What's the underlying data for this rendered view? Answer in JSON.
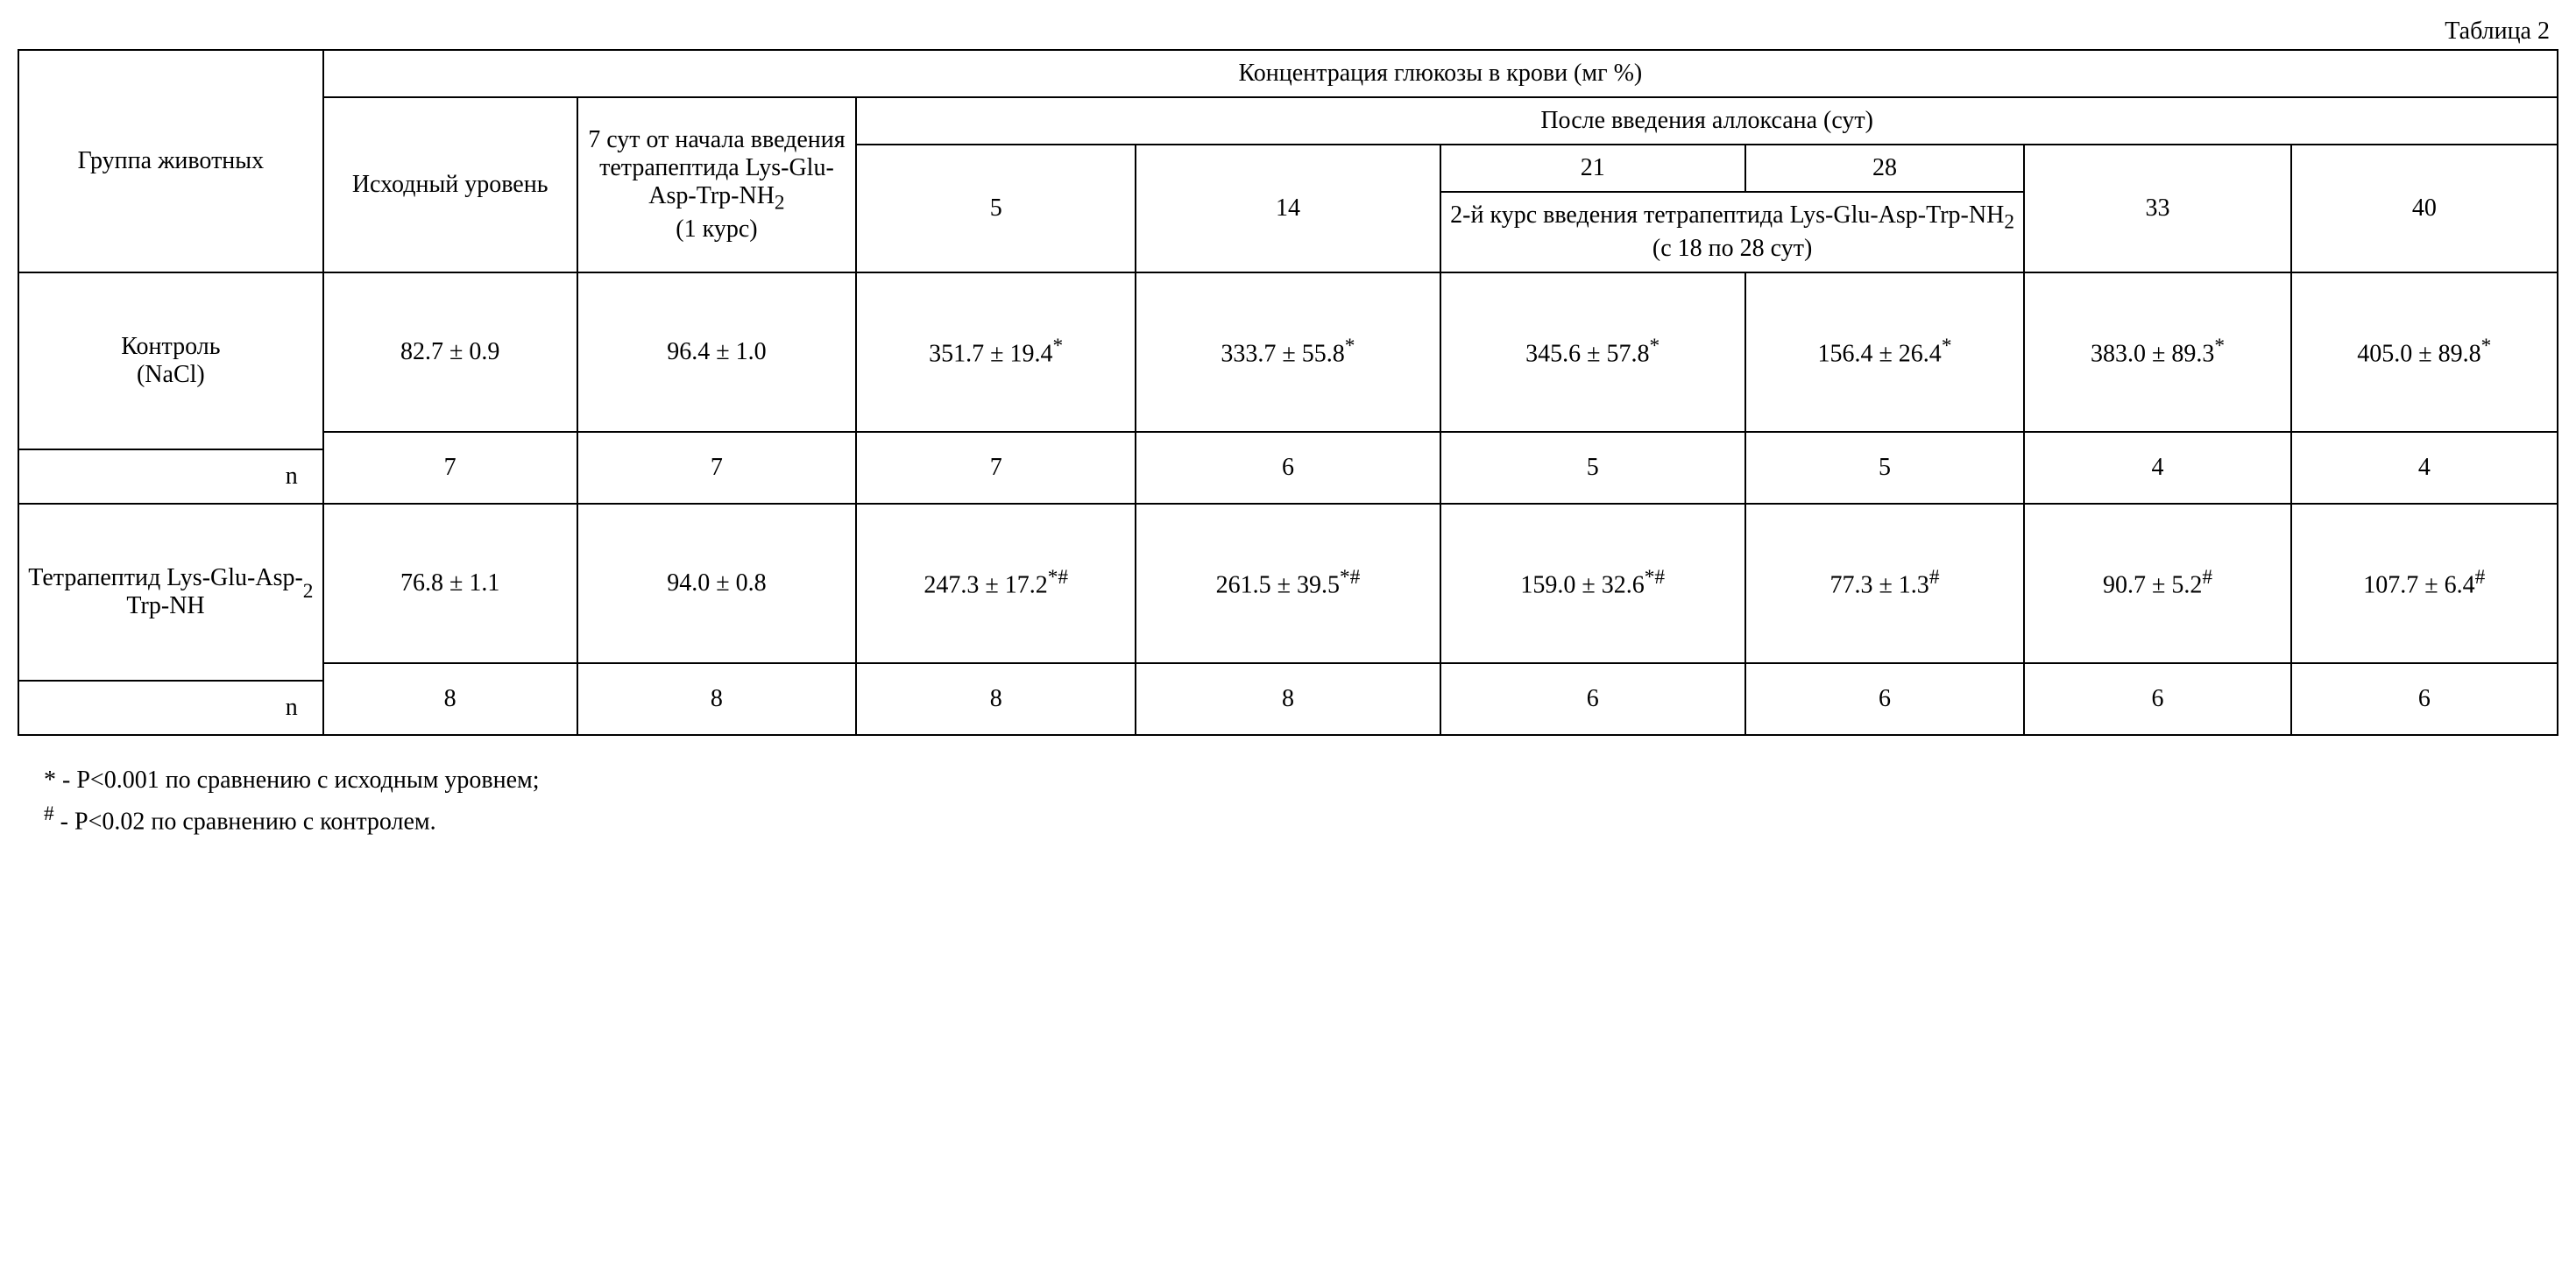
{
  "caption": "Таблица 2",
  "headers": {
    "group": "Группа животных",
    "main": "Концентрация глюкозы в крови (мг %)",
    "baseline": "Исходный уровень",
    "day7": "7 сут  от начала введения тетрапептида Lys-Glu-Asp-Trp-NH₂\n(1 курс)",
    "after_alloxan": "После введения аллоксана (сут)",
    "d5": "5",
    "d14": "14",
    "d21": "21",
    "d28": "28",
    "course2": "2-й курс введения тетрапептида Lys-Glu-Asp-Trp-NH₂\n(с 18 по 28 сут)",
    "d33": "33",
    "d40": "40"
  },
  "rows": {
    "control": {
      "label": "Контроль (NaCl)",
      "baseline": "82.7 ± 0.9",
      "day7": "96.4 ± 1.0",
      "d5": "351.7 ± 19.4*",
      "d14": "333.7 ± 55.8*",
      "d21": "345.6 ± 57.8*",
      "d28": "156.4 ± 26.4*",
      "d33": "383.0 ± 89.3*",
      "d40": "405.0 ± 89.8*",
      "n_label": "n",
      "n": {
        "baseline": "7",
        "day7": "7",
        "d5": "7",
        "d14": "6",
        "d21": "5",
        "d28": "5",
        "d33": "4",
        "d40": "4"
      }
    },
    "tetra": {
      "label": "Тетрапептид Lys-Glu-Asp-Trp-NH₂",
      "baseline": "76.8 ± 1.1",
      "day7": "94.0 ± 0.8",
      "d5": "247.3 ± 17.2*#",
      "d14": "261.5 ± 39.5*#",
      "d21": "159.0 ± 32.6*#",
      "d28": "77.3 ± 1.3#",
      "d33": "90.7 ± 5.2#",
      "d40": "107.7 ± 6.4#",
      "n_label": "n",
      "n": {
        "baseline": "8",
        "day7": "8",
        "d5": "8",
        "d14": "8",
        "d21": "6",
        "d28": "6",
        "d33": "6",
        "d40": "6"
      }
    }
  },
  "footnotes": {
    "star": "* - P<0.001 по сравнению с исходным уровнем;",
    "hash": "# - P<0.02 по сравнению с  контролем."
  },
  "style": {
    "font_family": "Times New Roman",
    "font_size_pt": 28,
    "border_color": "#000000",
    "background": "#ffffff",
    "text_color": "#000000",
    "col_widths_pct": [
      12,
      10,
      11,
      11,
      12,
      12,
      11,
      10.5,
      10.5
    ]
  }
}
